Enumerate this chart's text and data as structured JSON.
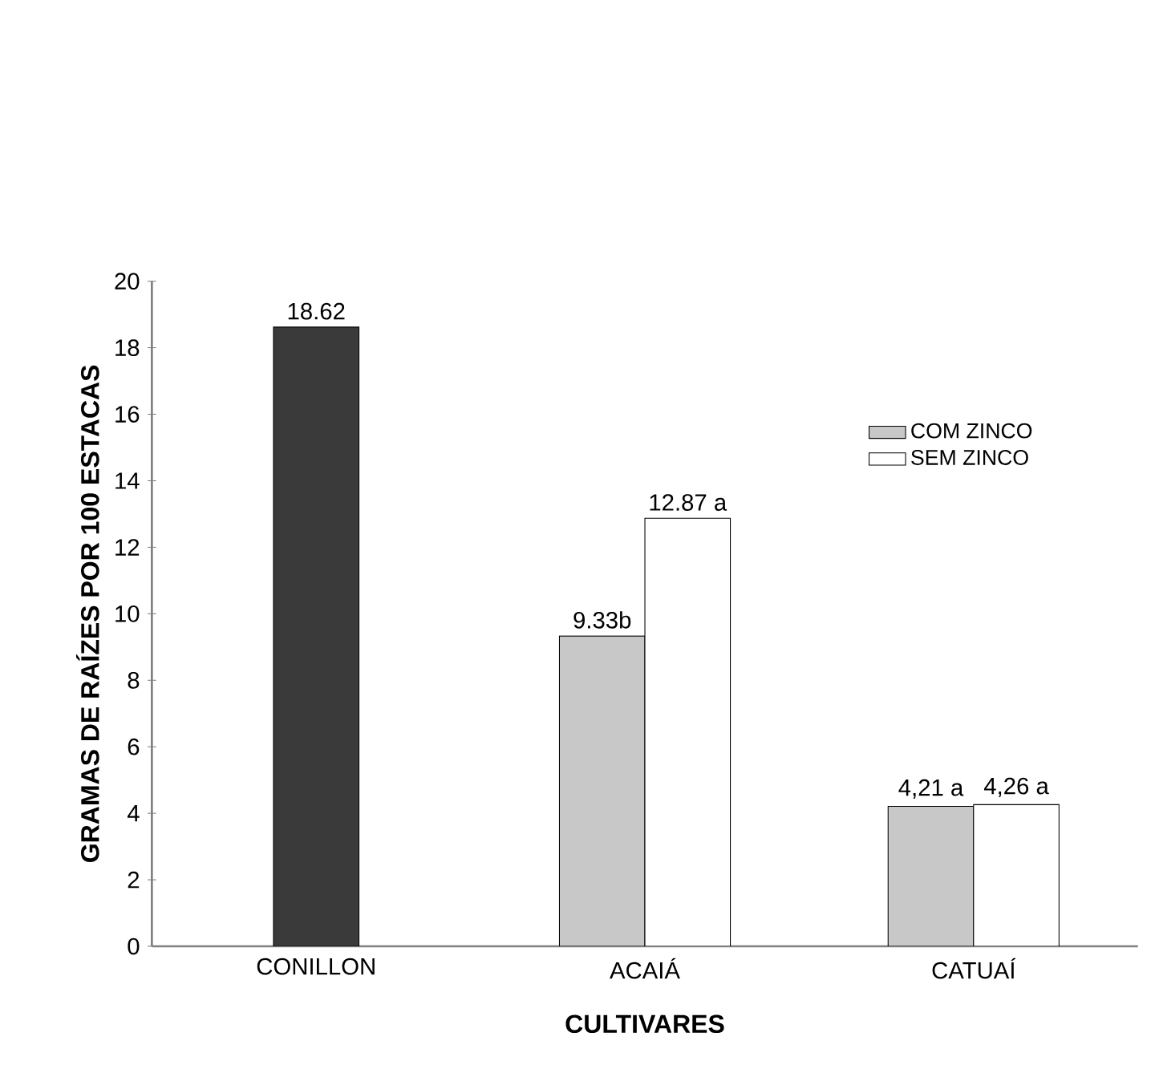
{
  "chart_data": {
    "type": "bar",
    "xlabel": "CULTIVARES",
    "ylabel": "GRAMAS DE RAÍZES POR 100 ESTACAS",
    "categories": [
      "CONILLON",
      "ACAIÁ",
      "CATUAÍ"
    ],
    "series": [
      {
        "color": "#3a3a3a",
        "values": [
          18.62,
          null,
          null
        ],
        "value_labels": [
          "18.62",
          null,
          null
        ]
      },
      {
        "name": "COM ZINCO",
        "color": "#c8c8c8",
        "values": [
          null,
          9.33,
          4.21
        ],
        "value_labels": [
          null,
          "9.33b",
          "4,21 a"
        ]
      },
      {
        "name": "SEM ZINCO",
        "color": "#ffffff",
        "values": [
          null,
          12.87,
          4.26
        ],
        "value_labels": [
          null,
          "12.87 a",
          "4,26 a"
        ]
      }
    ],
    "ylim": [
      0,
      20
    ],
    "yticks": [
      0,
      2,
      4,
      6,
      8,
      10,
      12,
      14,
      16,
      18,
      20
    ],
    "legend": "right",
    "grid": false
  }
}
